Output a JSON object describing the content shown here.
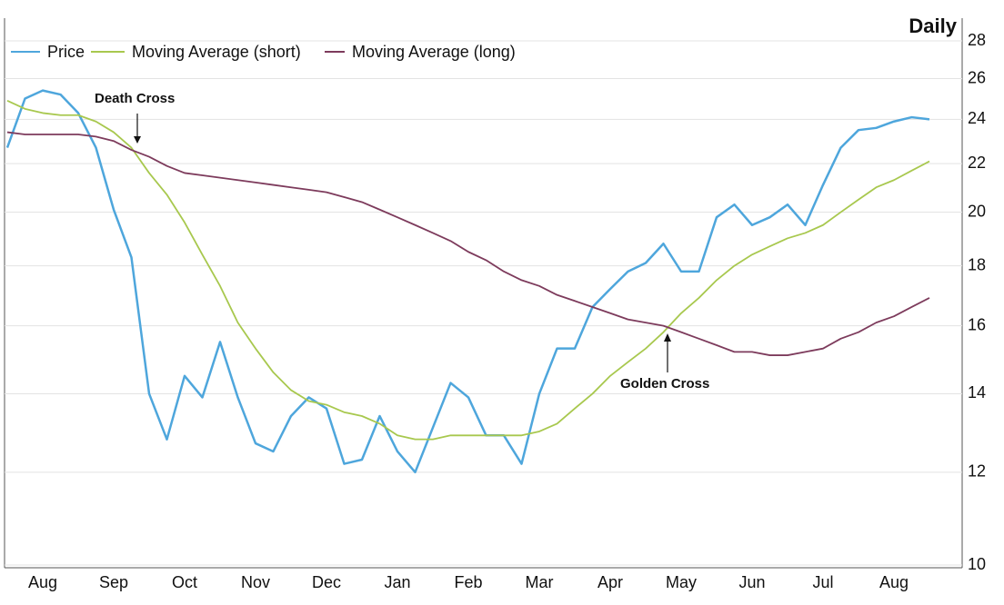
{
  "chart_data": {
    "type": "line",
    "title": "Daily",
    "categories": [
      null,
      null,
      "Aug",
      null,
      null,
      null,
      "Sep",
      null,
      null,
      null,
      "Oct",
      null,
      null,
      null,
      "Nov",
      null,
      null,
      null,
      "Dec",
      null,
      null,
      null,
      "Jan",
      null,
      null,
      null,
      "Feb",
      null,
      null,
      null,
      "Mar",
      null,
      null,
      null,
      "Apr",
      null,
      null,
      null,
      "May",
      null,
      null,
      null,
      "Jun",
      null,
      null,
      null,
      "Jul",
      null,
      null,
      null,
      "Aug",
      null,
      null
    ],
    "series": [
      {
        "name": "Price",
        "color": "#4ea6dc",
        "values": [
          22.7,
          25.0,
          25.4,
          25.2,
          24.3,
          22.7,
          20.1,
          18.3,
          14.0,
          12.8,
          14.5,
          13.9,
          15.5,
          13.9,
          12.7,
          12.5,
          13.4,
          13.9,
          13.6,
          12.2,
          12.3,
          13.4,
          12.5,
          12.0,
          13.1,
          14.3,
          13.9,
          12.9,
          12.9,
          12.2,
          14.0,
          15.3,
          15.3,
          16.6,
          17.2,
          17.8,
          18.1,
          18.8,
          17.8,
          17.8,
          19.8,
          20.3,
          19.5,
          19.8,
          20.3,
          19.5,
          21.1,
          22.7,
          23.5,
          23.6,
          23.9,
          24.1,
          24.0
        ]
      },
      {
        "name": "Moving Average (short)",
        "color": "#a8c84e",
        "values": [
          24.9,
          24.5,
          24.3,
          24.2,
          24.2,
          23.9,
          23.4,
          22.7,
          21.6,
          20.7,
          19.6,
          18.4,
          17.3,
          16.1,
          15.3,
          14.6,
          14.1,
          13.8,
          13.7,
          13.5,
          13.4,
          13.2,
          12.9,
          12.8,
          12.8,
          12.9,
          12.9,
          12.9,
          12.9,
          12.9,
          13.0,
          13.2,
          13.6,
          14.0,
          14.5,
          14.9,
          15.3,
          15.8,
          16.4,
          16.9,
          17.5,
          18.0,
          18.4,
          18.7,
          19.0,
          19.2,
          19.5,
          20.0,
          20.5,
          21.0,
          21.3,
          21.7,
          22.1
        ]
      },
      {
        "name": "Moving Average (long)",
        "color": "#7d3b5c",
        "values": [
          23.4,
          23.3,
          23.3,
          23.3,
          23.3,
          23.2,
          23.0,
          22.6,
          22.3,
          21.9,
          21.6,
          21.5,
          21.4,
          21.3,
          21.2,
          21.1,
          21.0,
          20.9,
          20.8,
          20.6,
          20.4,
          20.1,
          19.8,
          19.5,
          19.2,
          18.9,
          18.5,
          18.2,
          17.8,
          17.5,
          17.3,
          17.0,
          16.8,
          16.6,
          16.4,
          16.2,
          16.1,
          16.0,
          15.8,
          15.6,
          15.4,
          15.2,
          15.2,
          15.1,
          15.1,
          15.2,
          15.3,
          15.6,
          15.8,
          16.1,
          16.3,
          16.6,
          16.9
        ]
      }
    ],
    "ylim": [
      10,
      28
    ],
    "yticks": [
      10,
      12,
      14,
      16,
      18,
      20,
      22,
      24,
      26,
      28
    ],
    "yscale": "log",
    "grid": true,
    "annotations": [
      "Death Cross",
      "Golden Cross"
    ]
  }
}
